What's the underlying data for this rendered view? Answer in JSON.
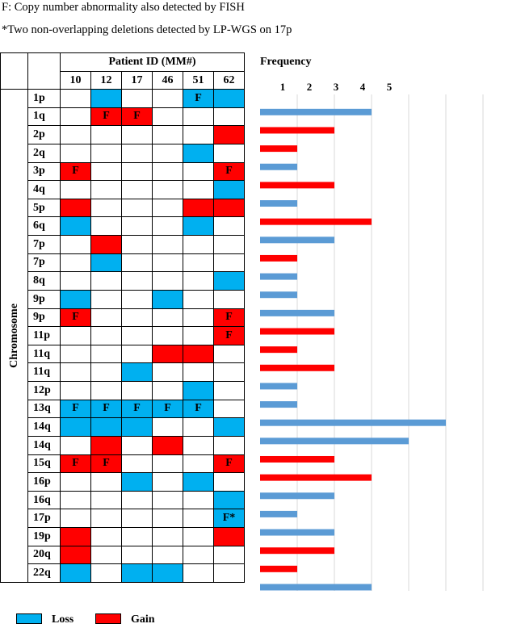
{
  "notes": {
    "line1": "F: Copy number abnormality also detected by FISH",
    "line2": "*Two non-overlapping deletions detected by LP-WGS on 17p"
  },
  "table": {
    "header_title": "Patient ID (MM#)",
    "row_axis_label": "Chromosome",
    "patients": [
      "10",
      "12",
      "17",
      "46",
      "51",
      "62"
    ],
    "rows": [
      {
        "label": "1p",
        "cells": [
          "",
          "L",
          "",
          "",
          "LF",
          "L"
        ]
      },
      {
        "label": "1q",
        "cells": [
          "",
          "GF",
          "GF",
          "",
          "",
          ""
        ]
      },
      {
        "label": "2p",
        "cells": [
          "",
          "",
          "",
          "",
          "",
          "G"
        ]
      },
      {
        "label": "2q",
        "cells": [
          "",
          "",
          "",
          "",
          "L",
          ""
        ]
      },
      {
        "label": "3p",
        "cells": [
          "GF",
          "",
          "",
          "",
          "",
          "GF"
        ]
      },
      {
        "label": "4q",
        "cells": [
          "",
          "",
          "",
          "",
          "",
          "L"
        ]
      },
      {
        "label": "5p",
        "cells": [
          "G",
          "",
          "",
          "",
          "G",
          "G"
        ]
      },
      {
        "label": "6q",
        "cells": [
          "L",
          "",
          "",
          "",
          "L",
          ""
        ]
      },
      {
        "label": "7p",
        "cells": [
          "",
          "G",
          "",
          "",
          "",
          ""
        ]
      },
      {
        "label": "7p",
        "cells": [
          "",
          "L",
          "",
          "",
          "",
          ""
        ]
      },
      {
        "label": "8q",
        "cells": [
          "",
          "",
          "",
          "",
          "",
          "L"
        ]
      },
      {
        "label": "9p",
        "cells": [
          "L",
          "",
          "",
          "L",
          "",
          ""
        ]
      },
      {
        "label": "9p",
        "cells": [
          "GF",
          "",
          "",
          "",
          "",
          "GF"
        ]
      },
      {
        "label": "11p",
        "cells": [
          "",
          "",
          "",
          "",
          "",
          "GF"
        ]
      },
      {
        "label": "11q",
        "cells": [
          "",
          "",
          "",
          "G",
          "G",
          ""
        ]
      },
      {
        "label": "11q",
        "cells": [
          "",
          "",
          "L",
          "",
          "",
          ""
        ]
      },
      {
        "label": "12p",
        "cells": [
          "",
          "",
          "",
          "",
          "L",
          ""
        ]
      },
      {
        "label": "13q",
        "cells": [
          "LF",
          "LF",
          "LF",
          "LF",
          "LF",
          ""
        ]
      },
      {
        "label": "14q",
        "cells": [
          "L",
          "L",
          "L",
          "",
          "",
          "L"
        ]
      },
      {
        "label": "14q",
        "cells": [
          "",
          "G",
          "",
          "G",
          "",
          ""
        ]
      },
      {
        "label": "15q",
        "cells": [
          "GF",
          "GF",
          "",
          "",
          "",
          "GF"
        ]
      },
      {
        "label": "16p",
        "cells": [
          "",
          "",
          "L",
          "",
          "L",
          ""
        ]
      },
      {
        "label": "16q",
        "cells": [
          "",
          "",
          "",
          "",
          "",
          "L"
        ]
      },
      {
        "label": "17p",
        "cells": [
          "",
          "",
          "",
          "",
          "",
          "LF*"
        ]
      },
      {
        "label": "19p",
        "cells": [
          "G",
          "",
          "",
          "",
          "",
          "G"
        ]
      },
      {
        "label": "20q",
        "cells": [
          "G",
          "",
          "",
          "",
          "",
          ""
        ]
      },
      {
        "label": "22q",
        "cells": [
          "L",
          "",
          "L",
          "L",
          "",
          ""
        ]
      }
    ],
    "marks": {
      "F": "F",
      "F*": "F*"
    }
  },
  "chart_data": {
    "type": "bar",
    "orientation": "horizontal",
    "title": "Frequency",
    "x_tick_labels": [
      "1",
      "2",
      "3",
      "4",
      "5"
    ],
    "categories": [
      "1p",
      "1q",
      "2p",
      "2q",
      "3p",
      "4q",
      "5p",
      "6q",
      "7p",
      "7p",
      "8q",
      "9p",
      "9p",
      "11p",
      "11q",
      "11q",
      "12p",
      "13q",
      "14q",
      "14q",
      "15q",
      "16p",
      "16q",
      "17p",
      "19p",
      "20q",
      "22q"
    ],
    "values": [
      3,
      2,
      1,
      1,
      2,
      1,
      3,
      2,
      1,
      1,
      1,
      2,
      2,
      1,
      2,
      1,
      1,
      5,
      4,
      2,
      3,
      2,
      1,
      2,
      2,
      1,
      3
    ],
    "types": [
      "loss",
      "gain",
      "gain",
      "loss",
      "gain",
      "loss",
      "gain",
      "loss",
      "gain",
      "loss",
      "loss",
      "loss",
      "gain",
      "gain",
      "gain",
      "loss",
      "loss",
      "loss",
      "loss",
      "gain",
      "gain",
      "loss",
      "loss",
      "loss",
      "gain",
      "gain",
      "loss"
    ],
    "xlim": [
      0,
      6
    ],
    "grid": true
  },
  "legend": {
    "loss": "Loss",
    "gain": "Gain"
  },
  "colors": {
    "loss_cell": "#00b0f0",
    "gain_cell": "#ff0000",
    "loss_bar": "#5b9bd5",
    "gain_bar": "#ff0000",
    "grid": "#d9d9d9"
  }
}
